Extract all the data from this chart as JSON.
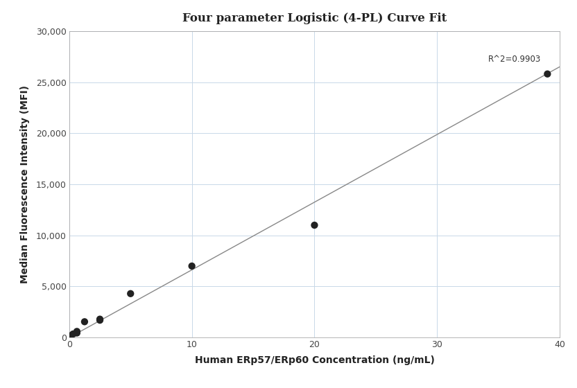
{
  "title": "Four parameter Logistic (4-PL) Curve Fit",
  "xlabel": "Human ERp57/ERp60 Concentration (ng/mL)",
  "ylabel": "Median Fluorescence Intensity (MFI)",
  "scatter_x": [
    0.078,
    0.156,
    0.313,
    0.625,
    0.625,
    1.25,
    2.5,
    2.5,
    5.0,
    10.0,
    20.0,
    39.0
  ],
  "scatter_y": [
    50,
    200,
    350,
    450,
    600,
    1550,
    1700,
    1800,
    4300,
    7000,
    11000,
    25800
  ],
  "line_x": [
    0.0,
    40.0
  ],
  "line_y": [
    0.0,
    26500
  ],
  "r2_text": "R^2=0.9903",
  "r2_x": 38.5,
  "r2_y": 26800,
  "xlim": [
    0,
    40
  ],
  "ylim": [
    0,
    30000
  ],
  "xticks": [
    0,
    10,
    20,
    30,
    40
  ],
  "yticks": [
    0,
    5000,
    10000,
    15000,
    20000,
    25000,
    30000
  ],
  "scatter_color": "#222222",
  "line_color": "#888888",
  "grid_color": "#c8d8e8",
  "background_color": "#ffffff",
  "title_fontsize": 12,
  "label_fontsize": 10,
  "tick_fontsize": 9,
  "annotation_fontsize": 8.5
}
